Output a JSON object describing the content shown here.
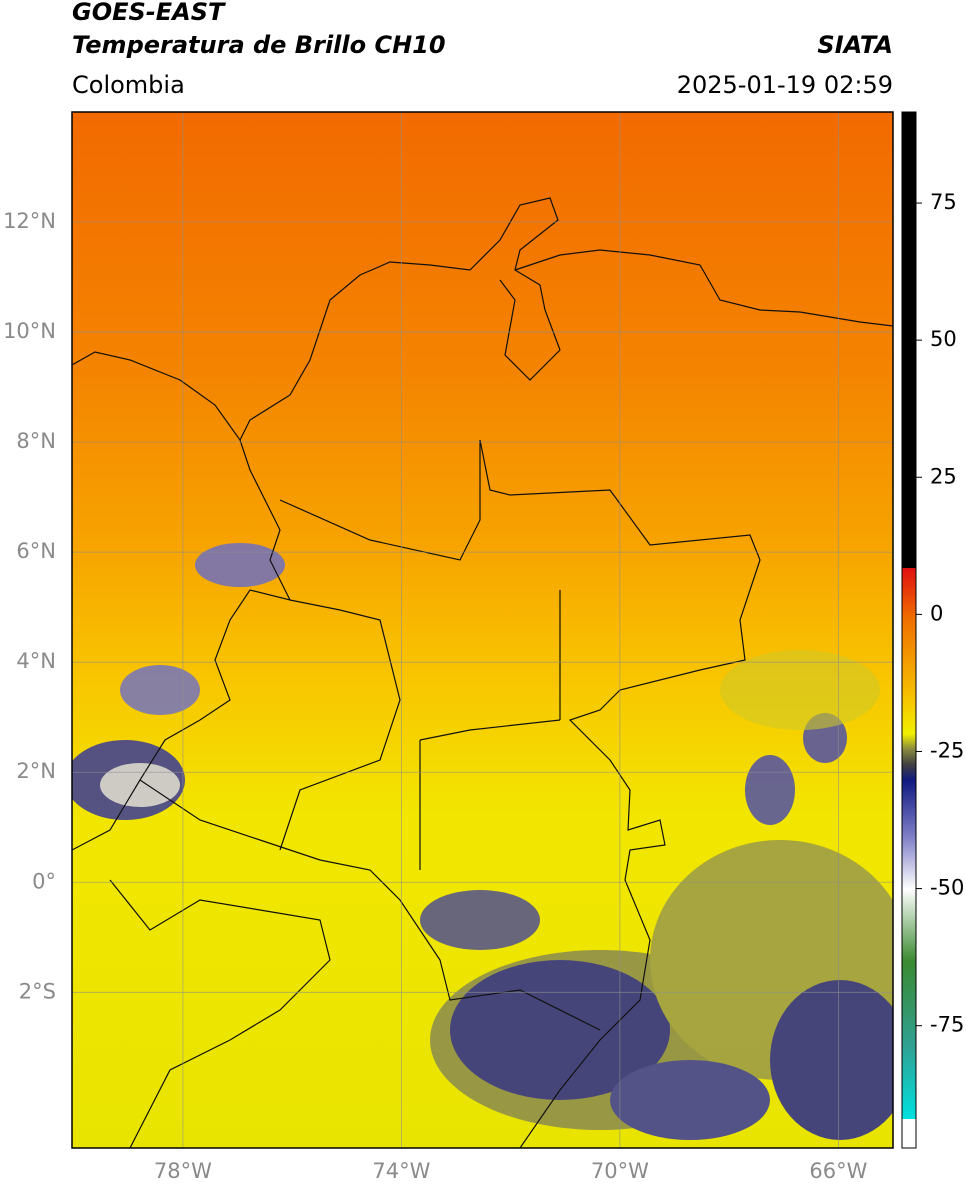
{
  "header": {
    "title": "GOES-EAST",
    "subtitle": "Temperatura de Brillo CH10",
    "source": "SIATA",
    "region": "Colombia",
    "timestamp": "2025-01-19 02:59"
  },
  "map": {
    "xlim": [
      -80.03,
      -65.0
    ],
    "ylim": [
      -4.83,
      14.0
    ],
    "xticks": [
      {
        "value": -78,
        "label": "78°W"
      },
      {
        "value": -74,
        "label": "74°W"
      },
      {
        "value": -70,
        "label": "70°W"
      },
      {
        "value": -66,
        "label": "66°W"
      }
    ],
    "yticks": [
      {
        "value": 12,
        "label": "12°N"
      },
      {
        "value": 10,
        "label": "10°N"
      },
      {
        "value": 8,
        "label": "8°N"
      },
      {
        "value": 6,
        "label": "6°N"
      },
      {
        "value": 4,
        "label": "4°N"
      },
      {
        "value": 2,
        "label": "2°N"
      },
      {
        "value": 0,
        "label": "0°"
      },
      {
        "value": -2,
        "label": "2°S"
      }
    ],
    "grid": true
  },
  "colorbar": {
    "lim": [
      -97.3,
      91.6
    ],
    "ticks": [
      75,
      50,
      25,
      0,
      -25,
      -50,
      -75
    ]
  }
}
